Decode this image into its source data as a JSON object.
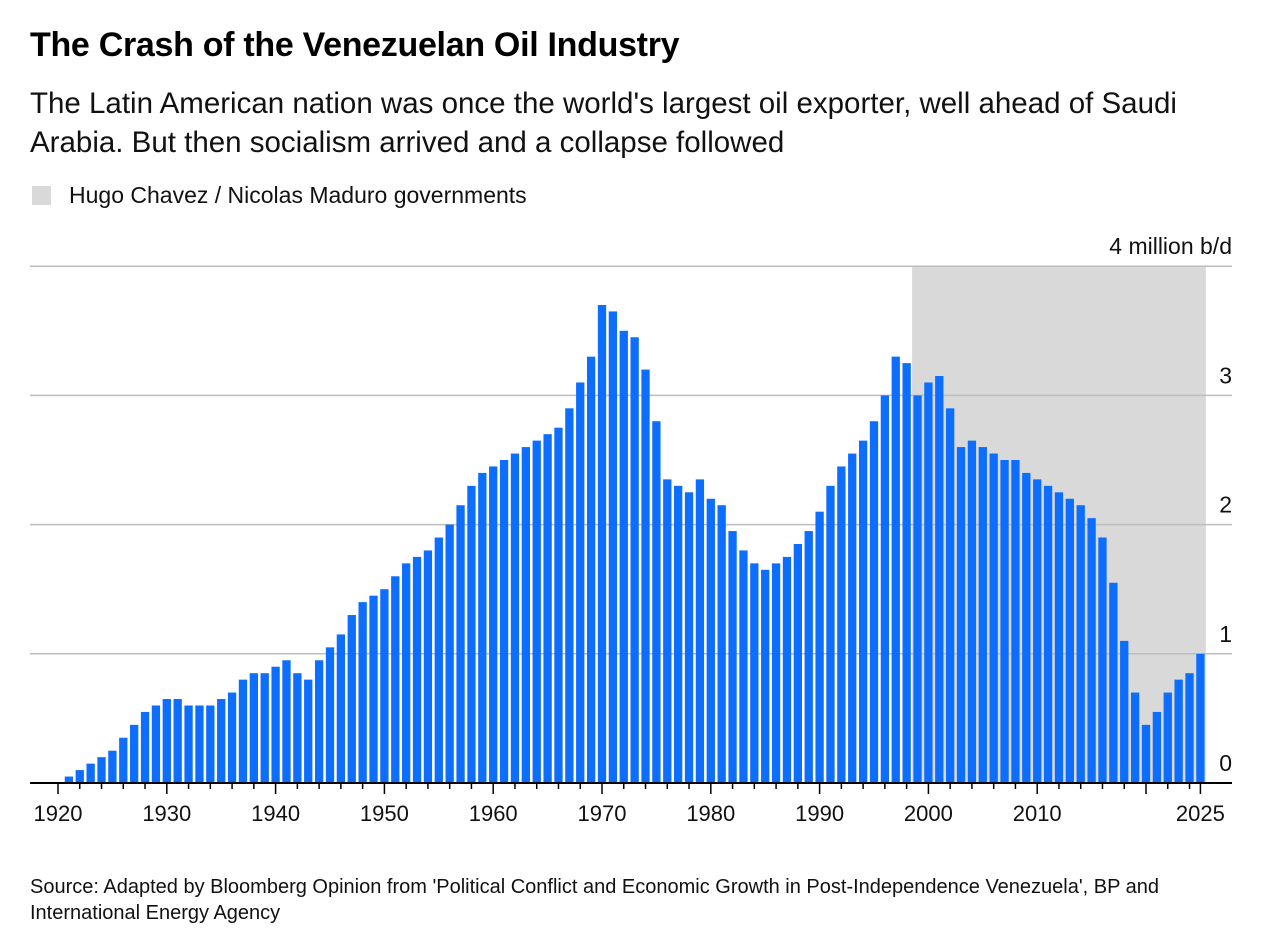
{
  "title": "The Crash of the Venezuelan Oil Industry",
  "subtitle": "The Latin American nation was once the world's largest oil exporter, well ahead of Saudi Arabia. But then socialism arrived and a collapse followed",
  "legend": {
    "label": "Hugo Chavez / Nicolas Maduro governments",
    "color": "#d9d9d9"
  },
  "source": "Source: Adapted by Bloomberg Opinion from 'Political Conflict and Economic Growth in Post-Independence Venezuela', BP and International Energy Agency",
  "chart_data": {
    "type": "bar",
    "unit_label": "4 million b/d",
    "ylim": [
      0,
      4
    ],
    "yticks": [
      0,
      1,
      2,
      3,
      4
    ],
    "ytick_labels": [
      "0",
      "1",
      "2",
      "3",
      "4 million b/d"
    ],
    "xticks": [
      "1920",
      "1930",
      "1940",
      "1950",
      "1960",
      "1970",
      "1980",
      "1990",
      "2000",
      "2010",
      "2025"
    ],
    "grid": true,
    "bar_color": "#0d6efd",
    "shaded_period": {
      "label": "Hugo Chavez / Nicolas Maduro governments",
      "start": 1999,
      "end": 2025,
      "color": "#d9d9d9"
    },
    "start_year": 1921,
    "values": [
      0.05,
      0.1,
      0.15,
      0.2,
      0.25,
      0.35,
      0.45,
      0.55,
      0.6,
      0.65,
      0.65,
      0.6,
      0.6,
      0.6,
      0.65,
      0.7,
      0.8,
      0.85,
      0.85,
      0.9,
      0.95,
      0.85,
      0.8,
      0.95,
      1.05,
      1.15,
      1.3,
      1.4,
      1.45,
      1.5,
      1.6,
      1.7,
      1.75,
      1.8,
      1.9,
      2.0,
      2.15,
      2.3,
      2.4,
      2.45,
      2.5,
      2.55,
      2.6,
      2.65,
      2.7,
      2.75,
      2.9,
      3.1,
      3.3,
      3.7,
      3.65,
      3.5,
      3.45,
      3.2,
      2.8,
      2.35,
      2.3,
      2.25,
      2.35,
      2.2,
      2.15,
      1.95,
      1.8,
      1.7,
      1.65,
      1.7,
      1.75,
      1.85,
      1.95,
      2.1,
      2.3,
      2.45,
      2.55,
      2.65,
      2.8,
      3.0,
      3.3,
      3.25,
      3.0,
      3.1,
      3.15,
      2.9,
      2.6,
      2.65,
      2.6,
      2.55,
      2.5,
      2.5,
      2.4,
      2.35,
      2.3,
      2.25,
      2.2,
      2.15,
      2.05,
      1.9,
      1.55,
      1.1,
      0.7,
      0.45,
      0.55,
      0.7,
      0.8,
      0.85,
      1.0
    ]
  }
}
